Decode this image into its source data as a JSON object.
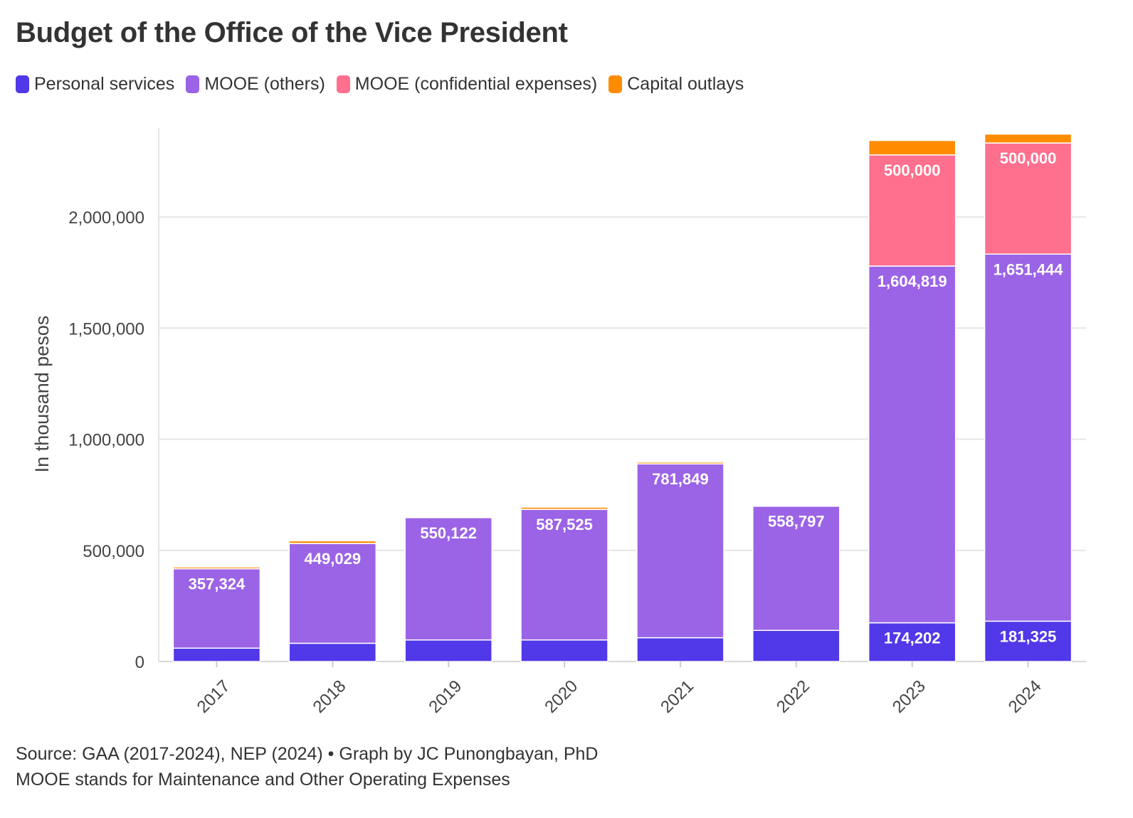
{
  "chart_data": {
    "type": "bar",
    "stacked": true,
    "title": "Budget of the Office of the Vice President",
    "ylabel": "In thousand pesos",
    "xlabel": "",
    "categories": [
      "2017",
      "2018",
      "2019",
      "2020",
      "2021",
      "2022",
      "2023",
      "2024"
    ],
    "ylim": [
      0,
      2400000
    ],
    "yticks": [
      0,
      500000,
      1000000,
      1500000,
      2000000
    ],
    "ytick_labels": [
      "0",
      "500,000",
      "1,000,000",
      "1,500,000",
      "2,000,000"
    ],
    "grid": true,
    "legend_position": "top-left",
    "series": [
      {
        "name": "Personal services",
        "color": "#5138e8",
        "values": [
          60000,
          82000,
          97000,
          97000,
          107000,
          140000,
          174202,
          181325
        ],
        "labels": [
          "",
          "",
          "",
          "",
          "",
          "",
          "174,202",
          "181,325"
        ]
      },
      {
        "name": "MOOE (others)",
        "color": "#9b63e6",
        "values": [
          357324,
          449029,
          550122,
          587525,
          781849,
          558797,
          1604819,
          1651444
        ],
        "labels": [
          "357,324",
          "449,029",
          "550,122",
          "587,525",
          "781,849",
          "558,797",
          "1,604,819",
          "1,651,444"
        ]
      },
      {
        "name": "MOOE (confidential expenses)",
        "color": "#ff6f8e",
        "values": [
          0,
          0,
          0,
          0,
          0,
          0,
          500000,
          500000
        ],
        "labels": [
          "",
          "",
          "",
          "",
          "",
          "",
          "500,000",
          "500,000"
        ]
      },
      {
        "name": "Capital outlays",
        "color": "#ff8c00",
        "values": [
          8000,
          12000,
          3000,
          10000,
          8000,
          4000,
          65000,
          40000
        ],
        "labels": [
          "",
          "",
          "",
          "",
          "",
          "",
          "",
          ""
        ]
      }
    ]
  },
  "footer": {
    "source": "Source: GAA (2017-2024), NEP (2024) • Graph by JC Punongbayan, PhD",
    "note": "MOOE stands for Maintenance and Other Operating Expenses"
  }
}
